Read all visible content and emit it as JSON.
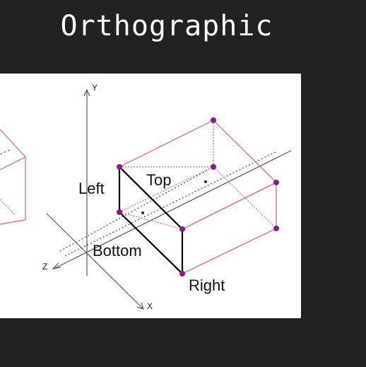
{
  "title": "Orthographic",
  "diagram": {
    "axes": {
      "y": "Y",
      "z": "Z",
      "x": "X"
    },
    "planes": {
      "left": "Left",
      "top": "Top",
      "bottom": "Bottom",
      "right": "Right"
    },
    "colors": {
      "background": "#212121",
      "panel": "#ffffff",
      "frustum_edge": "#e06070",
      "near_plane_edge": "#000000",
      "vertex": "#8a1a8a",
      "axis": "#555555",
      "center_dot": "#1a1aa0"
    }
  }
}
